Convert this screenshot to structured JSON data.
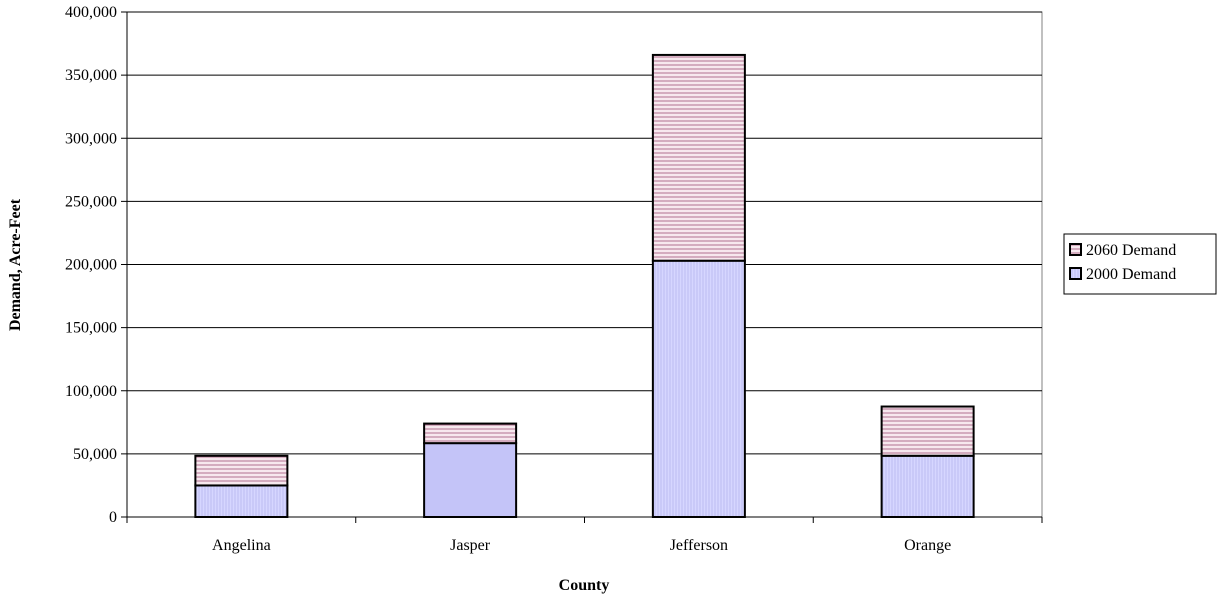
{
  "chart_data": {
    "type": "bar",
    "stacked": true,
    "categories": [
      "Angelina",
      "Jasper",
      "Jefferson",
      "Orange"
    ],
    "series": [
      {
        "name": "2000 Demand",
        "values": [
          25000,
          58500,
          203000,
          48500
        ]
      },
      {
        "name": "2060 Demand",
        "values": [
          23500,
          15500,
          163000,
          39000
        ]
      }
    ],
    "title": "",
    "xlabel": "County",
    "ylabel": "Demand, Acre-Feet",
    "ylim": [
      0,
      400000
    ],
    "yticks": [
      0,
      50000,
      100000,
      150000,
      200000,
      250000,
      300000,
      350000,
      400000
    ],
    "ytick_labels": [
      "0",
      "50,000",
      "100,000",
      "150,000",
      "200,000",
      "250,000",
      "300,000",
      "350,000",
      "400,000"
    ],
    "grid": true,
    "legend": {
      "position": "right",
      "entries": [
        "2060 Demand",
        "2000 Demand"
      ]
    },
    "colors": {
      "2000 Demand": "#ccccff",
      "2060 Demand": "#f2dde4",
      "stripe_2060": "#b07090",
      "stripe_2000": "#b8b8f0"
    }
  }
}
